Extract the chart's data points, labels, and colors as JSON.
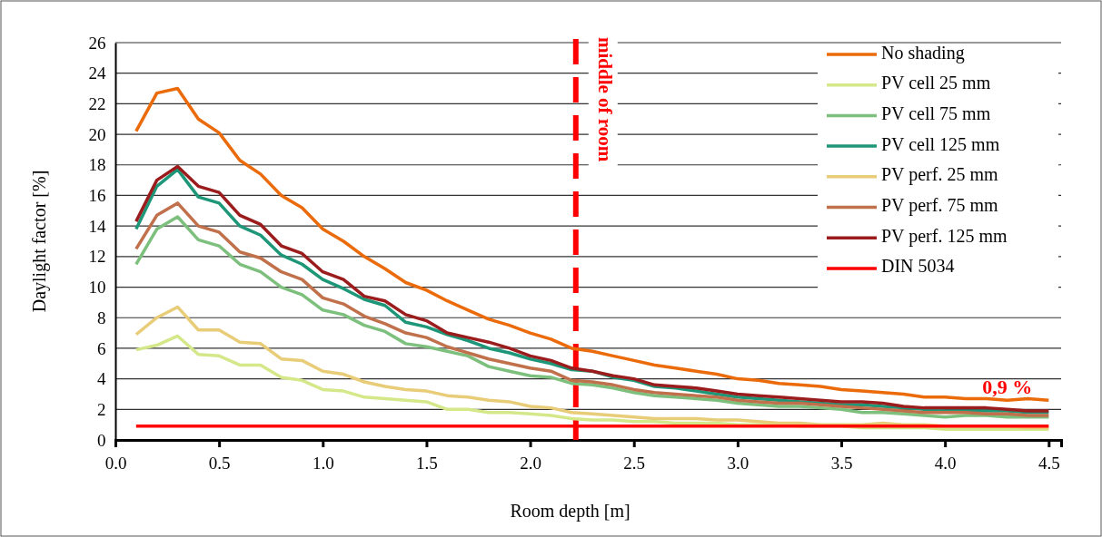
{
  "chart_data": {
    "type": "line",
    "xlabel": "Room depth [m]",
    "ylabel": "Daylight factor [%]",
    "x": [
      0.1,
      0.2,
      0.3,
      0.4,
      0.5,
      0.6,
      0.7,
      0.8,
      0.9,
      1.0,
      1.1,
      1.2,
      1.3,
      1.4,
      1.5,
      1.6,
      1.7,
      1.8,
      1.9,
      2.0,
      2.1,
      2.2,
      2.3,
      2.4,
      2.5,
      2.6,
      2.7,
      2.8,
      2.9,
      3.0,
      3.1,
      3.2,
      3.3,
      3.4,
      3.5,
      3.6,
      3.7,
      3.8,
      3.9,
      4.0,
      4.1,
      4.2,
      4.3,
      4.4,
      4.5
    ],
    "series": [
      {
        "name": "No shading",
        "color": "#eb6a0a",
        "values": [
          20.2,
          22.7,
          23.0,
          21.0,
          20.1,
          18.3,
          17.4,
          16.0,
          15.2,
          13.8,
          13.0,
          12.0,
          11.2,
          10.3,
          9.8,
          9.1,
          8.5,
          7.9,
          7.5,
          7.0,
          6.6,
          6.0,
          5.8,
          5.5,
          5.2,
          4.9,
          4.7,
          4.5,
          4.3,
          4.0,
          3.9,
          3.7,
          3.6,
          3.5,
          3.3,
          3.2,
          3.1,
          3.0,
          2.8,
          2.8,
          2.7,
          2.7,
          2.6,
          2.7,
          2.6
        ]
      },
      {
        "name": "PV cell 25 mm",
        "color": "#d4e88a",
        "values": [
          5.9,
          6.2,
          6.8,
          5.6,
          5.5,
          4.9,
          4.9,
          4.1,
          3.9,
          3.3,
          3.2,
          2.8,
          2.7,
          2.6,
          2.5,
          2.0,
          2.0,
          1.8,
          1.8,
          1.7,
          1.6,
          1.4,
          1.3,
          1.3,
          1.2,
          1.2,
          1.1,
          1.1,
          1.1,
          1.0,
          1.0,
          1.0,
          0.9,
          0.9,
          0.9,
          0.8,
          0.8,
          0.8,
          0.8,
          0.7,
          0.7,
          0.7,
          0.7,
          0.7,
          0.7
        ]
      },
      {
        "name": "PV cell 75 mm",
        "color": "#7dc07d",
        "values": [
          11.5,
          13.8,
          14.6,
          13.1,
          12.7,
          11.5,
          11.0,
          10.0,
          9.5,
          8.5,
          8.2,
          7.5,
          7.1,
          6.3,
          6.1,
          5.8,
          5.5,
          4.8,
          4.5,
          4.2,
          4.1,
          3.7,
          3.6,
          3.4,
          3.1,
          2.9,
          2.8,
          2.7,
          2.6,
          2.4,
          2.3,
          2.2,
          2.2,
          2.1,
          2.0,
          1.8,
          1.8,
          1.7,
          1.6,
          1.5,
          1.6,
          1.6,
          1.5,
          1.5,
          1.5
        ]
      },
      {
        "name": "PV cell 125 mm",
        "color": "#1e9678",
        "values": [
          13.8,
          16.6,
          17.7,
          15.9,
          15.5,
          14.0,
          13.4,
          12.1,
          11.5,
          10.5,
          9.9,
          9.2,
          8.8,
          7.7,
          7.4,
          6.9,
          6.5,
          6.0,
          5.7,
          5.3,
          5.0,
          4.6,
          4.5,
          4.1,
          3.9,
          3.5,
          3.4,
          3.2,
          3.0,
          2.8,
          2.7,
          2.6,
          2.5,
          2.4,
          2.3,
          2.3,
          2.2,
          2.1,
          2.0,
          1.9,
          1.9,
          1.9,
          1.9,
          1.8,
          1.8
        ]
      },
      {
        "name": "PV perf. 25 mm",
        "color": "#e8cc78",
        "values": [
          6.9,
          8.0,
          8.7,
          7.2,
          7.2,
          6.4,
          6.3,
          5.3,
          5.2,
          4.5,
          4.3,
          3.8,
          3.5,
          3.3,
          3.2,
          2.9,
          2.8,
          2.6,
          2.5,
          2.2,
          2.1,
          1.8,
          1.7,
          1.6,
          1.5,
          1.4,
          1.4,
          1.4,
          1.3,
          1.3,
          1.2,
          1.1,
          1.1,
          1.0,
          1.0,
          1.0,
          1.1,
          1.0,
          1.0,
          0.9,
          0.9,
          0.9,
          0.9,
          0.8,
          0.8
        ]
      },
      {
        "name": "PV perf. 75 mm",
        "color": "#c0704a",
        "values": [
          12.5,
          14.7,
          15.5,
          14.0,
          13.6,
          12.3,
          11.9,
          11.0,
          10.5,
          9.3,
          8.9,
          8.1,
          7.6,
          7.0,
          6.7,
          6.1,
          5.7,
          5.3,
          5.0,
          4.7,
          4.5,
          3.9,
          3.8,
          3.6,
          3.3,
          3.1,
          3.0,
          2.9,
          2.8,
          2.6,
          2.5,
          2.4,
          2.4,
          2.3,
          2.2,
          2.1,
          2.0,
          1.9,
          1.8,
          1.8,
          1.8,
          1.7,
          1.7,
          1.6,
          1.6
        ]
      },
      {
        "name": "PV perf. 125 mm",
        "color": "#9b1c1c",
        "values": [
          14.3,
          17.0,
          17.9,
          16.6,
          16.2,
          14.7,
          14.1,
          12.7,
          12.2,
          11.0,
          10.5,
          9.4,
          9.1,
          8.2,
          7.8,
          7.0,
          6.7,
          6.4,
          6.0,
          5.5,
          5.2,
          4.7,
          4.5,
          4.2,
          4.0,
          3.6,
          3.5,
          3.4,
          3.2,
          3.0,
          2.9,
          2.8,
          2.7,
          2.6,
          2.5,
          2.5,
          2.4,
          2.2,
          2.1,
          2.1,
          2.1,
          2.1,
          2.0,
          1.9,
          1.9
        ]
      },
      {
        "name": "DIN 5034",
        "color": "#ff0000",
        "x": [
          0.1,
          4.5
        ],
        "values": [
          0.9,
          0.9
        ]
      }
    ],
    "xlim": [
      0,
      4.56
    ],
    "xticks": [
      {
        "value": 0,
        "label": "0.0"
      },
      0.5,
      {
        "value": 1,
        "label": "1.0"
      },
      1.5,
      {
        "value": 2,
        "label": "2.0"
      },
      2.5,
      {
        "value": 3,
        "label": "3.0"
      },
      3.5,
      {
        "value": 4,
        "label": "4.0"
      },
      4.5
    ],
    "ylim": [
      0,
      26
    ],
    "yticks": [
      0,
      2,
      4,
      6,
      8,
      10,
      12,
      14,
      16,
      18,
      20,
      22,
      24,
      26
    ],
    "grid": "y",
    "legend": "top right",
    "marker": "none",
    "line_style": "solid",
    "ref_lines": [
      {
        "axis": "x",
        "value": 2.22,
        "label": "middle of room",
        "color": "#ff0000",
        "line_style": "dashed"
      }
    ],
    "annotations": [
      {
        "text": "0,9 %",
        "x": 4.3,
        "y": 0.9
      }
    ]
  }
}
